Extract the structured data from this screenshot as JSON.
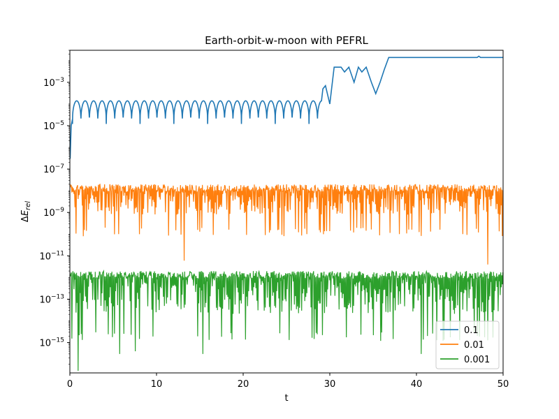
{
  "chart_data": {
    "type": "line",
    "title": "Earth-orbit-w-moon with PEFRL",
    "xlabel": "t",
    "ylabel": "ΔE_rel",
    "xlim": [
      0,
      50
    ],
    "ylim": [
      4e-17,
      0.03
    ],
    "yscale": "log",
    "grid": false,
    "legend_position": "lower-right",
    "x_ticks": [
      0,
      10,
      20,
      30,
      40,
      50
    ],
    "y_ticks": [
      {
        "value": 1e-15,
        "mantissa": "10",
        "exp": "−15"
      },
      {
        "value": 1e-13,
        "mantissa": "10",
        "exp": "−13"
      },
      {
        "value": 1e-11,
        "mantissa": "10",
        "exp": "−11"
      },
      {
        "value": 1e-09,
        "mantissa": "10",
        "exp": "−9"
      },
      {
        "value": 1e-07,
        "mantissa": "10",
        "exp": "−7"
      },
      {
        "value": 1e-05,
        "mantissa": "10",
        "exp": "−5"
      },
      {
        "value": 0.001,
        "mantissa": "10",
        "exp": "−3"
      }
    ],
    "series": [
      {
        "name": "0.1",
        "color": "#1f77b4",
        "x": [
          0.03,
          0.15,
          0.3,
          29.05,
          29.2,
          29.5,
          30.0,
          30.5,
          31.3,
          31.7,
          32.2,
          32.8,
          33.3,
          33.7,
          34.2,
          34.8,
          35.3,
          35.8,
          36.3,
          36.8,
          47.0,
          47.2,
          47.4,
          50.0
        ],
        "y": [
          3e-07,
          1e-05,
          2e-05,
          3e-05,
          0.0005,
          0.0007,
          0.0001,
          0.005,
          0.005,
          0.003,
          0.005,
          0.001,
          0.005,
          0.003,
          0.005,
          0.001,
          0.0003,
          0.001,
          0.004,
          0.014,
          0.014,
          0.016,
          0.014,
          0.014
        ],
        "oscillation": {
          "x_start": 0.3,
          "x_end": 29.05,
          "min": 1.2e-05,
          "max": 0.00014,
          "period": 0.975
        }
      },
      {
        "name": "0.01",
        "color": "#ff7f0e",
        "band": {
          "x_start": 0.05,
          "x_end": 50,
          "upper": 2e-08,
          "typical_min": 2e-10
        },
        "spikes": [
          [
            1.6,
            8e-11
          ],
          [
            5.6,
            1e-10
          ],
          [
            13.2,
            6e-12
          ],
          [
            27.3,
            1e-10
          ],
          [
            38.0,
            1e-10
          ],
          [
            45.3,
            1e-10
          ],
          [
            48.2,
            4e-12
          ]
        ]
      },
      {
        "name": "0.001",
        "color": "#2ca02c",
        "band": {
          "x_start": 0.05,
          "x_end": 50,
          "upper": 2e-12,
          "typical_min": 3e-15
        },
        "spikes": [
          [
            0.9,
            5e-17
          ],
          [
            5.8,
            3e-16
          ],
          [
            7.6,
            4e-16
          ],
          [
            15.3,
            3e-16
          ],
          [
            40.5,
            3e-16
          ]
        ]
      }
    ]
  }
}
